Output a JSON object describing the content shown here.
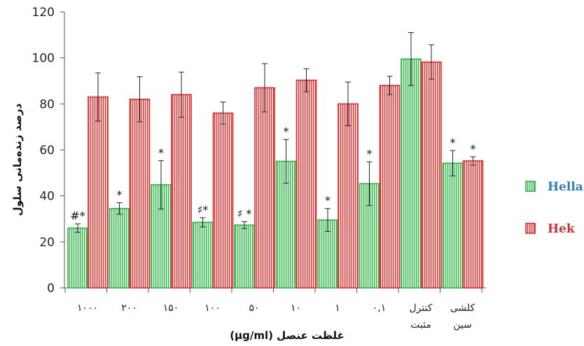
{
  "chart_data": {
    "type": "bar",
    "title": "",
    "xlabel": "غلظت عنصل (µg/ml)",
    "ylabel": "درصد زنده‌مانی سلول",
    "ylim": [
      0,
      120
    ],
    "yticks": [
      "0",
      "20",
      "40",
      "60",
      "80",
      "100",
      "120"
    ],
    "categories": [
      [
        "۱۰۰۰"
      ],
      [
        "۲۰۰"
      ],
      [
        "۱۵۰"
      ],
      [
        "۱۰۰"
      ],
      [
        "۵۰"
      ],
      [
        "۱۰"
      ],
      [
        "۱"
      ],
      [
        "۰,۱"
      ],
      [
        "کنترل",
        "مثبت"
      ],
      [
        "کلشی",
        "سین"
      ]
    ],
    "series": [
      {
        "name": "Hella",
        "color": "#2db34a",
        "fill": "#d9f2dc",
        "values": [
          26,
          34.5,
          44.8,
          28.5,
          27.3,
          55,
          29.5,
          45.3,
          99.5,
          54.2
        ],
        "errors": [
          1.8,
          2.5,
          10.5,
          2.0,
          1.5,
          9.5,
          5.0,
          9.5,
          11.5,
          5.5
        ],
        "annotations": [
          "#*",
          "*",
          "*",
          "♯*",
          "♯ *",
          "*",
          "*",
          "*",
          "",
          "*"
        ]
      },
      {
        "name": "Hek",
        "color": "#e02b2b",
        "fill": "#fbdada",
        "values": [
          83,
          82,
          84,
          76,
          87,
          90.3,
          80,
          88,
          98.2,
          55.2
        ],
        "errors": [
          10.5,
          9.8,
          9.8,
          4.8,
          10.5,
          5.0,
          9.5,
          4.0,
          7.5,
          1.8
        ],
        "annotations": [
          "",
          "",
          "",
          "",
          "",
          "",
          "",
          "",
          "",
          "*"
        ]
      }
    ],
    "legend": {
      "placement": "right",
      "entries": [
        "Hella",
        "Hek"
      ]
    },
    "grid": false
  }
}
